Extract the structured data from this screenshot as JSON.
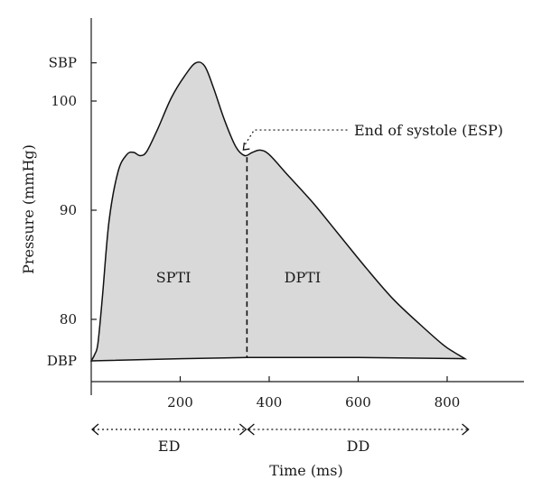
{
  "chart_data": {
    "type": "area",
    "xlabel": "Time (ms)",
    "ylabel": "Pressure (mmHg)",
    "xlim": [
      0,
      950
    ],
    "ylim": [
      74,
      108
    ],
    "x_ticks": [
      200,
      400,
      600,
      800
    ],
    "y_ticks": [
      {
        "value": 103.5,
        "label": "SBP"
      },
      {
        "value": 100,
        "label": "100"
      },
      {
        "value": 90,
        "label": "90"
      },
      {
        "value": 80,
        "label": "80"
      },
      {
        "value": 76.2,
        "label": "DBP"
      }
    ],
    "baseline": [
      {
        "x": 0,
        "y": 76.2
      },
      {
        "x": 200,
        "y": 76.4
      },
      {
        "x": 350,
        "y": 76.5
      },
      {
        "x": 600,
        "y": 76.5
      },
      {
        "x": 840,
        "y": 76.4
      }
    ],
    "curve": [
      {
        "x": 0,
        "y": 76.2
      },
      {
        "x": 8,
        "y": 76.8
      },
      {
        "x": 15,
        "y": 77.8
      },
      {
        "x": 25,
        "y": 82
      },
      {
        "x": 40,
        "y": 89
      },
      {
        "x": 60,
        "y": 93.5
      },
      {
        "x": 80,
        "y": 95.1
      },
      {
        "x": 95,
        "y": 95.3
      },
      {
        "x": 110,
        "y": 95.0
      },
      {
        "x": 125,
        "y": 95.4
      },
      {
        "x": 150,
        "y": 97.5
      },
      {
        "x": 180,
        "y": 100.3
      },
      {
        "x": 210,
        "y": 102.3
      },
      {
        "x": 235,
        "y": 103.5
      },
      {
        "x": 255,
        "y": 103.2
      },
      {
        "x": 275,
        "y": 101.2
      },
      {
        "x": 300,
        "y": 98.2
      },
      {
        "x": 325,
        "y": 95.8
      },
      {
        "x": 345,
        "y": 95.0
      },
      {
        "x": 362,
        "y": 95.3
      },
      {
        "x": 380,
        "y": 95.5
      },
      {
        "x": 400,
        "y": 95.1
      },
      {
        "x": 440,
        "y": 93.3
      },
      {
        "x": 500,
        "y": 90.6
      },
      {
        "x": 560,
        "y": 87.6
      },
      {
        "x": 620,
        "y": 84.6
      },
      {
        "x": 680,
        "y": 81.8
      },
      {
        "x": 740,
        "y": 79.5
      },
      {
        "x": 790,
        "y": 77.7
      },
      {
        "x": 815,
        "y": 77.0
      },
      {
        "x": 840,
        "y": 76.4
      }
    ],
    "end_of_systole": {
      "x": 350,
      "y": 95.2
    },
    "regions": [
      {
        "label": "SPTI",
        "x": 185,
        "y": 83.4
      },
      {
        "label": "DPTI",
        "x": 475,
        "y": 83.4
      }
    ],
    "annotation": "End of systole (ESP)",
    "spans": [
      {
        "label": "ED",
        "from": 0,
        "to": 350
      },
      {
        "label": "DD",
        "from": 350,
        "to": 850
      }
    ],
    "fill_color": "#d9d9d9",
    "grid": false,
    "legend": "none"
  }
}
